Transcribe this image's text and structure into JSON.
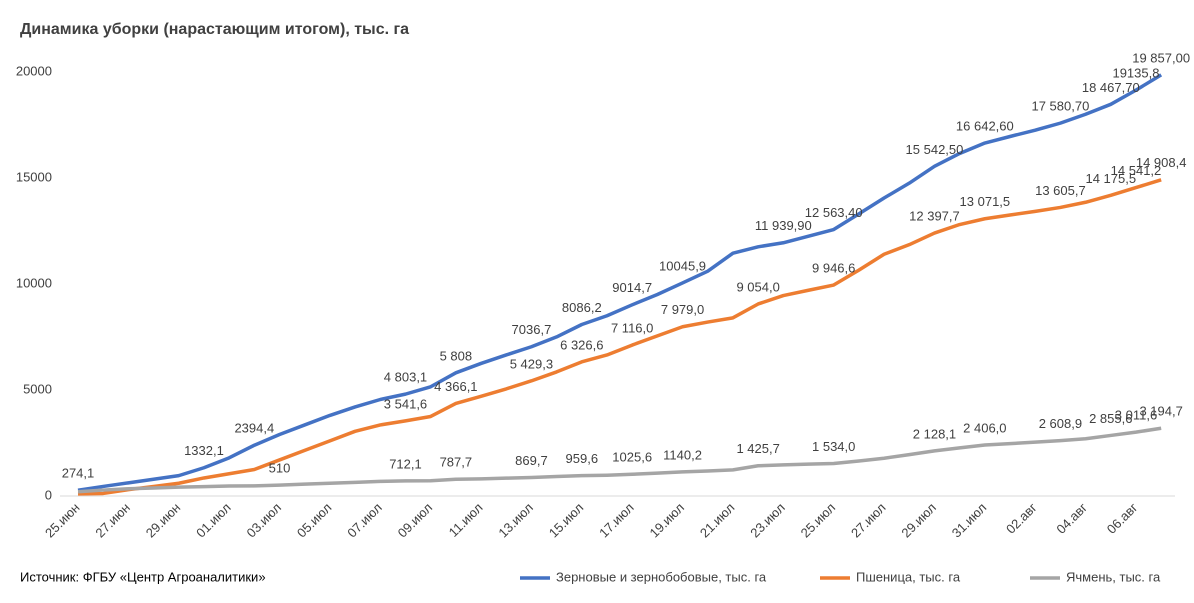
{
  "chart_data": {
    "type": "line",
    "title": "Динамика уборки (нарастающим итогом), тыс. га",
    "source": "Источник: ФГБУ «Центр Агроаналитики»",
    "categories": [
      "25.июн",
      null,
      "27.июн",
      null,
      "29.июн",
      null,
      "01.июл",
      null,
      "03.июл",
      null,
      "05.июл",
      null,
      "07.июл",
      null,
      "09.июл",
      null,
      "11.июл",
      null,
      "13.июл",
      null,
      "15.июл",
      null,
      "17.июл",
      null,
      "19.июл",
      null,
      "21.июл",
      null,
      "23.июл",
      null,
      "25.июл",
      null,
      "27.июл",
      null,
      "29.июл",
      null,
      "31.июл",
      null,
      "02.авг",
      null,
      "04.авг",
      null,
      "06.авг",
      null
    ],
    "series": [
      {
        "name": "Зерновые и зернобобовые, тыс. га",
        "color": "#4472c4",
        "values": [
          274.1,
          450,
          620,
          790,
          960,
          1332.1,
          1800,
          2394.4,
          2900,
          3350,
          3800,
          4200,
          4550,
          4803.1,
          5150,
          5808,
          6250,
          6650,
          7036.7,
          7500,
          8086.2,
          8500,
          9014.7,
          9500,
          10045.9,
          10600,
          11450,
          11750,
          11939.9,
          12250,
          12563.4,
          13300,
          14050,
          14750,
          15542.5,
          16150,
          16642.6,
          16950,
          17250,
          17580.7,
          18000,
          18467.7,
          19135.8,
          19857
        ],
        "value_labels": [
          "274,1",
          null,
          null,
          null,
          null,
          "1332,1",
          null,
          "2394,4",
          null,
          null,
          null,
          null,
          null,
          "4 803,1",
          null,
          "5 808",
          null,
          null,
          "7036,7",
          null,
          "8086,2",
          null,
          "9014,7",
          null,
          "10045,9",
          null,
          null,
          null,
          "11 939,90",
          null,
          "12 563,40",
          null,
          null,
          null,
          "15 542,50",
          null,
          "16 642,60",
          null,
          null,
          "17 580,70",
          null,
          "18 467,70",
          "19135,8",
          "19 857,00"
        ]
      },
      {
        "name": "Пшеница, тыс. га",
        "color": "#ed7d31",
        "values": [
          100,
          120,
          300,
          450,
          600,
          850,
          1050,
          1250,
          1700,
          2150,
          2600,
          3050,
          3350,
          3541.6,
          3750,
          4366.1,
          4700,
          5050,
          5429.3,
          5850,
          6326.6,
          6650,
          7116,
          7550,
          7979,
          8200,
          8400,
          9054,
          9450,
          9700,
          9946.6,
          10650,
          11400,
          11850,
          12397.7,
          12800,
          13071.5,
          13250,
          13420,
          13605.7,
          13850,
          14175.5,
          14541.2,
          14908.4
        ],
        "value_labels": [
          null,
          null,
          null,
          null,
          null,
          null,
          null,
          null,
          null,
          null,
          null,
          null,
          null,
          "3 541,6",
          null,
          "4 366,1",
          null,
          null,
          "5 429,3",
          null,
          "6 326,6",
          null,
          "7 116,0",
          null,
          "7 979,0",
          null,
          null,
          "9 054,0",
          null,
          null,
          "9 946,6",
          null,
          null,
          null,
          "12 397,7",
          null,
          "13 071,5",
          null,
          null,
          "13 605,7",
          null,
          "14 175,5",
          "14 541,2",
          "14 908,4"
        ]
      },
      {
        "name": "Ячмень, тыс. га",
        "color": "#a5a5a5",
        "values": [
          200,
          280,
          340,
          380,
          420,
          440,
          470,
          480,
          510,
          560,
          600,
          640,
          690,
          712.1,
          720,
          787.7,
          810,
          840,
          869.7,
          920,
          959.6,
          980,
          1025.6,
          1080,
          1140.2,
          1180,
          1230,
          1425.7,
          1470,
          1500,
          1534,
          1650,
          1780,
          1950,
          2128.1,
          2270,
          2406,
          2470,
          2540,
          2608.9,
          2700,
          2855.6,
          3011.6,
          3194.7
        ],
        "value_labels": [
          null,
          null,
          null,
          null,
          null,
          null,
          null,
          null,
          "510",
          null,
          null,
          null,
          null,
          "712,1",
          null,
          "787,7",
          null,
          null,
          "869,7",
          null,
          "959,6",
          null,
          "1025,6",
          null,
          "1140,2",
          null,
          null,
          "1 425,7",
          null,
          null,
          "1 534,0",
          null,
          null,
          null,
          "2 128,1",
          null,
          "2 406,0",
          null,
          null,
          "2 608,9",
          null,
          "2 855,6",
          "3 011,6",
          "3 194,7"
        ]
      }
    ],
    "ylim": [
      0,
      21500
    ],
    "yticks": [
      0,
      5000,
      10000,
      15000,
      20000
    ],
    "grid": false,
    "legend": "bottom"
  }
}
